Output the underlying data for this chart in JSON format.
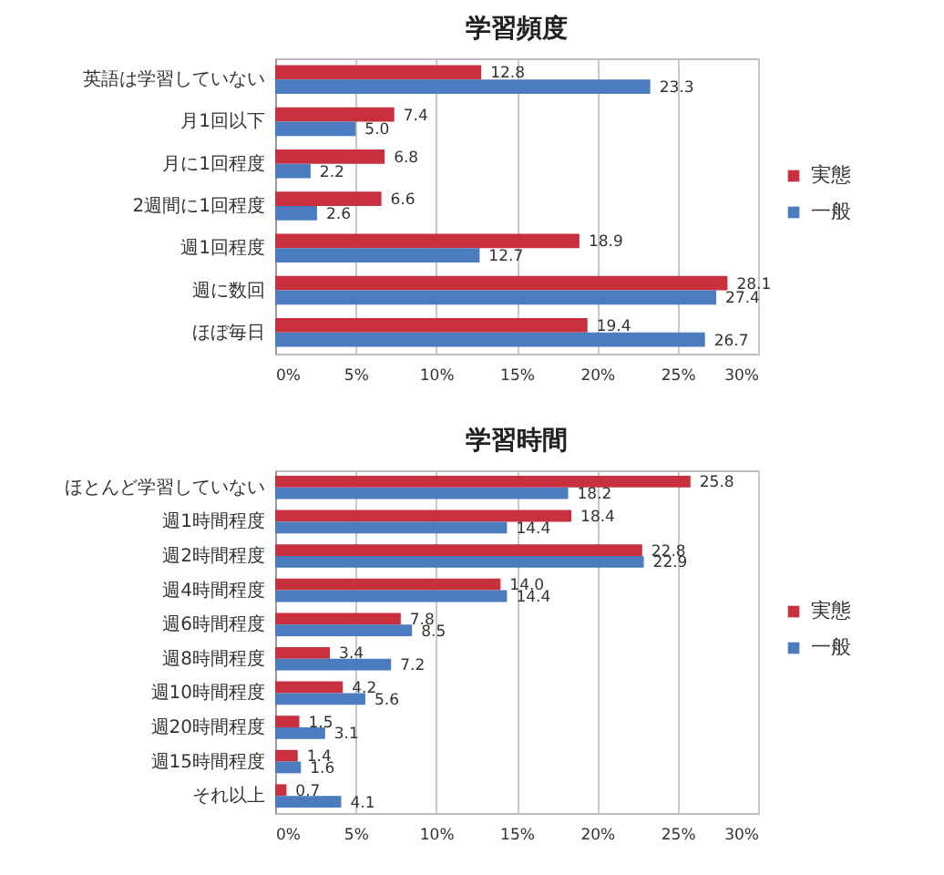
{
  "chart_data": [
    {
      "type": "bar",
      "orientation": "horizontal",
      "title": "学習頻度",
      "categories": [
        "英語は学習していない",
        "月1回以下",
        "月に1回程度",
        "2週間に1回程度",
        "週1回程度",
        "週に数回",
        "ほぼ毎日"
      ],
      "series": [
        {
          "name": "実態",
          "color": "#c9303e",
          "values": [
            12.8,
            7.4,
            6.8,
            6.6,
            18.9,
            28.1,
            19.4
          ],
          "value_labels": [
            "12.8",
            "7.4",
            "6.8",
            "6.6",
            "18.9",
            "28.1",
            "19.4"
          ]
        },
        {
          "name": "一般",
          "color": "#4a7cbf",
          "values": [
            23.3,
            5.0,
            2.2,
            2.6,
            12.7,
            27.4,
            26.7
          ],
          "value_labels": [
            "23.3",
            "5.0",
            "2.2",
            "2.6",
            "12.7",
            "27.4",
            "26.7"
          ]
        }
      ],
      "xlim": [
        0,
        30
      ],
      "xticks": [
        {
          "value": 0,
          "label": "0%"
        },
        {
          "value": 5,
          "label": "5%"
        },
        {
          "value": 10,
          "label": "10%"
        },
        {
          "value": 15,
          "label": "15%"
        },
        {
          "value": 20,
          "label": "20%"
        },
        {
          "value": 25,
          "label": "25%"
        },
        {
          "value": 30,
          "label": "30%"
        }
      ],
      "grid": "x",
      "legend": "right"
    },
    {
      "type": "bar",
      "orientation": "horizontal",
      "title": "学習時間",
      "categories": [
        "ほとんど学習していない",
        "週1時間程度",
        "週2時間程度",
        "週4時間程度",
        "週6時間程度",
        "週8時間程度",
        "週10時間程度",
        "週20時間程度",
        "週15時間程度",
        "それ以上"
      ],
      "series": [
        {
          "name": "実態",
          "color": "#c9303e",
          "values": [
            25.8,
            18.4,
            22.8,
            14.0,
            7.8,
            3.4,
            4.2,
            1.5,
            1.4,
            0.7
          ],
          "value_labels": [
            "25.8",
            "18.4",
            "22.8",
            "14.0",
            "7.8",
            "3.4",
            "4.2",
            "1.5",
            "1.4",
            "0.7"
          ]
        },
        {
          "name": "一般",
          "color": "#4a7cbf",
          "values": [
            18.2,
            14.4,
            22.9,
            14.4,
            8.5,
            7.2,
            5.6,
            3.1,
            1.6,
            4.1
          ],
          "value_labels": [
            "18.2",
            "14.4",
            "22.9",
            "14.4",
            "8.5",
            "7.2",
            "5.6",
            "3.1",
            "1.6",
            "4.1"
          ]
        }
      ],
      "xlim": [
        0,
        30
      ],
      "xticks": [
        {
          "value": 0,
          "label": "0%"
        },
        {
          "value": 5,
          "label": "5%"
        },
        {
          "value": 10,
          "label": "10%"
        },
        {
          "value": 15,
          "label": "15%"
        },
        {
          "value": 20,
          "label": "20%"
        },
        {
          "value": 25,
          "label": "25%"
        },
        {
          "value": 30,
          "label": "30%"
        }
      ],
      "grid": "x",
      "legend": "right"
    }
  ]
}
